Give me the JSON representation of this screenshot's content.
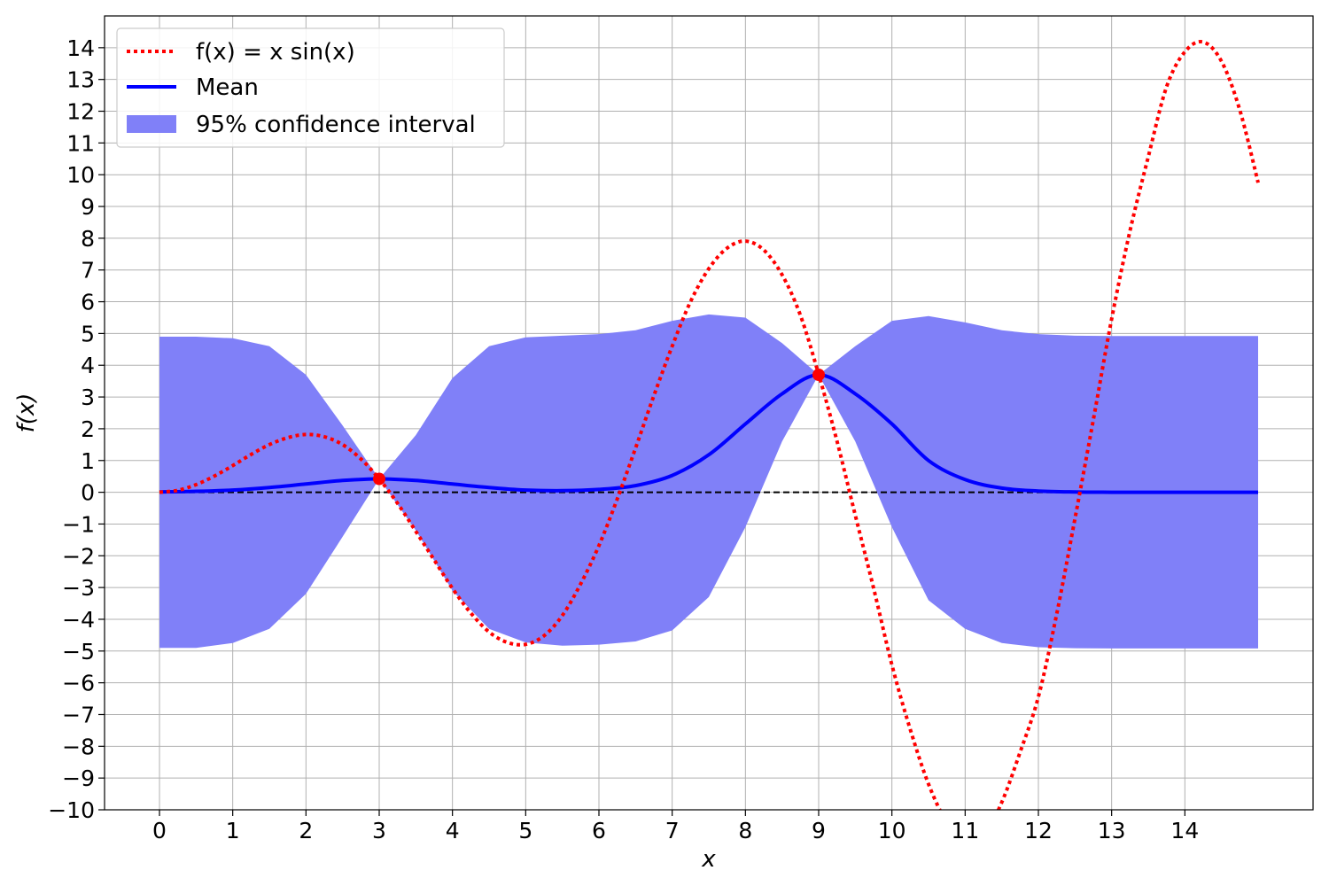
{
  "chart_data": {
    "type": "line",
    "xlabel": "x",
    "ylabel": "f(x)",
    "xlim": [
      -0.75,
      15.75
    ],
    "ylim": [
      -10,
      15
    ],
    "xticks": [
      0,
      1,
      2,
      3,
      4,
      5,
      6,
      7,
      8,
      9,
      10,
      11,
      12,
      13,
      14
    ],
    "yticks": [
      -10,
      -9,
      -8,
      -7,
      -6,
      -5,
      -4,
      -3,
      -2,
      -1,
      0,
      1,
      2,
      3,
      4,
      5,
      6,
      7,
      8,
      9,
      10,
      11,
      12,
      13,
      14
    ],
    "grid": true,
    "legend_position": "top-left",
    "colors": {
      "function": "#ff0000",
      "mean": "#0000ff",
      "band": "#8080f8",
      "baseline": "#000000",
      "grid": "#b0b0b0"
    },
    "series": [
      {
        "name": "f(x) = x sin(x)",
        "style": "dotted",
        "x": [
          0,
          0.25,
          0.5,
          0.75,
          1,
          1.25,
          1.5,
          1.75,
          2,
          2.25,
          2.5,
          2.75,
          3,
          3.25,
          3.5,
          3.75,
          4,
          4.25,
          4.5,
          4.75,
          5,
          5.25,
          5.5,
          5.75,
          6,
          6.25,
          6.5,
          6.75,
          7,
          7.25,
          7.5,
          7.75,
          8,
          8.25,
          8.5,
          8.75,
          9,
          9.25,
          9.5,
          9.75,
          10,
          10.25,
          10.5,
          10.75,
          11,
          11.25,
          11.5,
          11.75,
          12,
          12.25,
          12.5,
          12.75,
          13,
          13.25,
          13.5,
          13.75,
          14,
          14.25,
          14.5,
          14.75,
          15
        ],
        "y": [
          0,
          0.06,
          0.24,
          0.51,
          0.84,
          1.19,
          1.5,
          1.72,
          1.82,
          1.75,
          1.5,
          1.05,
          0.42,
          -0.35,
          -1.23,
          -2.13,
          -3.03,
          -3.8,
          -4.4,
          -4.73,
          -4.79,
          -4.52,
          -3.88,
          -2.89,
          -1.68,
          -0.21,
          1.39,
          3.04,
          4.6,
          6.0,
          7.04,
          7.69,
          7.91,
          7.63,
          6.85,
          5.58,
          3.71,
          1.61,
          -0.72,
          -3.02,
          -5.44,
          -7.46,
          -9.19,
          -10.4,
          -10.97,
          -10.84,
          -9.76,
          -8.19,
          -6.44,
          -3.83,
          -0.83,
          2.28,
          5.46,
          8.22,
          10.56,
          12.77,
          13.87,
          14.18,
          13.57,
          12.04,
          9.75
        ]
      },
      {
        "name": "Mean",
        "style": "solid",
        "x": [
          0,
          0.5,
          1,
          1.5,
          2,
          2.5,
          3,
          3.5,
          4,
          4.5,
          5,
          5.5,
          6,
          6.5,
          7,
          7.5,
          8,
          8.5,
          9,
          9.5,
          10,
          10.5,
          11,
          11.5,
          12,
          12.5,
          13,
          13.5,
          14,
          14.5,
          15
        ],
        "y": [
          0.01,
          0.03,
          0.07,
          0.15,
          0.26,
          0.37,
          0.42,
          0.37,
          0.26,
          0.15,
          0.07,
          0.05,
          0.09,
          0.21,
          0.53,
          1.18,
          2.15,
          3.1,
          3.7,
          3.1,
          2.15,
          1.0,
          0.4,
          0.13,
          0.04,
          0.01,
          0.0,
          0.0,
          0.0,
          0.0,
          0.0
        ]
      }
    ],
    "confidence_band": {
      "name": "95% confidence interval",
      "x": [
        0,
        0.5,
        1,
        1.5,
        2,
        2.5,
        3,
        3.5,
        4,
        4.5,
        5,
        5.5,
        6,
        6.5,
        7,
        7.5,
        8,
        8.5,
        9,
        9.5,
        10,
        10.5,
        11,
        11.5,
        12,
        12.5,
        13,
        13.5,
        14,
        14.5,
        15
      ],
      "upper": [
        4.9,
        4.9,
        4.85,
        4.6,
        3.7,
        2.1,
        0.42,
        1.8,
        3.6,
        4.6,
        4.88,
        4.93,
        4.98,
        5.1,
        5.4,
        5.6,
        5.5,
        4.7,
        3.7,
        4.6,
        5.4,
        5.55,
        5.35,
        5.1,
        4.98,
        4.93,
        4.92,
        4.92,
        4.92,
        4.92,
        4.92
      ],
      "lower": [
        -4.9,
        -4.9,
        -4.75,
        -4.3,
        -3.2,
        -1.4,
        0.42,
        -1.2,
        -3.1,
        -4.3,
        -4.73,
        -4.83,
        -4.8,
        -4.7,
        -4.35,
        -3.3,
        -1.1,
        1.6,
        3.7,
        1.6,
        -1.1,
        -3.4,
        -4.3,
        -4.75,
        -4.88,
        -4.91,
        -4.92,
        -4.92,
        -4.92,
        -4.92,
        -4.92
      ]
    },
    "observations": [
      {
        "x": 3,
        "y": 0.42
      },
      {
        "x": 9,
        "y": 3.7
      }
    ],
    "baseline_y": 0
  }
}
